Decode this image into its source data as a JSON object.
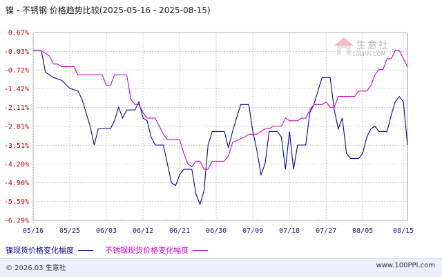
{
  "title": "镍 - 不锈钢 价格趋势比较(2025-05-16 - 2025-08-15)",
  "watermark": {
    "brand": "生意社",
    "site": "100PPI.COM"
  },
  "footer": {
    "left": "© 2026.03 生意社",
    "right": "www.100PPI.com"
  },
  "colors": {
    "series1": "#000099",
    "series2": "#cc00cc",
    "grid": "#c8c8c8",
    "ylabel": "#cc0000",
    "xlabel": "#1a1a66"
  },
  "chart_data": {
    "type": "line",
    "title": "镍 - 不锈钢 价格趋势比较(2025-05-16 - 2025-08-15)",
    "ylim": [
      -6.29,
      0.67
    ],
    "y_ticks": [
      "0.67%",
      "-0.03%",
      "-0.72%",
      "-1.42%",
      "-2.11%",
      "-2.81%",
      "-3.51%",
      "-4.20%",
      "-4.90%",
      "-5.59%",
      "-6.29%"
    ],
    "y_tick_values": [
      0.67,
      -0.03,
      -0.72,
      -1.42,
      -2.11,
      -2.81,
      -3.51,
      -4.2,
      -4.9,
      -5.59,
      -6.29
    ],
    "x_ticks": [
      "05/16",
      "05/25",
      "06/03",
      "06/12",
      "06/21",
      "06/30",
      "07/09",
      "07/18",
      "07/27",
      "08/05",
      "08/15"
    ],
    "x_tick_days": [
      0,
      9,
      18,
      27,
      36,
      45,
      54,
      63,
      72,
      81,
      91
    ],
    "grid": true,
    "legend_position": "bottom",
    "series": [
      {
        "name": "镍现货价格变化幅度",
        "points": [
          [
            0,
            0
          ],
          [
            2,
            0
          ],
          [
            3,
            -0.8
          ],
          [
            4,
            -0.9
          ],
          [
            5,
            -1.0
          ],
          [
            7,
            -1.1
          ],
          [
            9,
            -1.4
          ],
          [
            11,
            -1.5
          ],
          [
            12,
            -1.8
          ],
          [
            13,
            -2.3
          ],
          [
            14,
            -2.8
          ],
          [
            15,
            -3.5
          ],
          [
            16,
            -2.9
          ],
          [
            19,
            -2.9
          ],
          [
            20,
            -2.6
          ],
          [
            21,
            -2.1
          ],
          [
            22,
            -2.5
          ],
          [
            23,
            -2.2
          ],
          [
            25,
            -2.2
          ],
          [
            26,
            -1.9
          ],
          [
            27,
            -2.5
          ],
          [
            28,
            -2.6
          ],
          [
            29,
            -3.2
          ],
          [
            30,
            -3.5
          ],
          [
            32,
            -3.5
          ],
          [
            33,
            -4.2
          ],
          [
            34,
            -4.9
          ],
          [
            35,
            -5.0
          ],
          [
            36,
            -4.6
          ],
          [
            37,
            -4.4
          ],
          [
            39,
            -4.4
          ],
          [
            40,
            -5.3
          ],
          [
            41,
            -5.7
          ],
          [
            42,
            -5.2
          ],
          [
            43,
            -3.5
          ],
          [
            44,
            -3.0
          ],
          [
            47,
            -3.0
          ],
          [
            48,
            -3.6
          ],
          [
            49,
            -3.0
          ],
          [
            50,
            -2.5
          ],
          [
            51,
            -2.0
          ],
          [
            53,
            -2.0
          ],
          [
            54,
            -3.0
          ],
          [
            55,
            -3.7
          ],
          [
            56,
            -4.6
          ],
          [
            57,
            -4.2
          ],
          [
            58,
            -3.0
          ],
          [
            60,
            -3.0
          ],
          [
            61,
            -3.2
          ],
          [
            62,
            -4.4
          ],
          [
            63,
            -3.0
          ],
          [
            64,
            -4.4
          ],
          [
            65,
            -3.5
          ],
          [
            67,
            -3.5
          ],
          [
            68,
            -2.3
          ],
          [
            69,
            -2.0
          ],
          [
            70,
            -1.5
          ],
          [
            71,
            -1.0
          ],
          [
            73,
            -1.0
          ],
          [
            74,
            -2.2
          ],
          [
            75,
            -2.9
          ],
          [
            76,
            -2.5
          ],
          [
            77,
            -3.8
          ],
          [
            78,
            -4.0
          ],
          [
            80,
            -4.0
          ],
          [
            81,
            -3.8
          ],
          [
            82,
            -3.2
          ],
          [
            83,
            -2.9
          ],
          [
            84,
            -2.8
          ],
          [
            85,
            -3.0
          ],
          [
            87,
            -3.0
          ],
          [
            88,
            -2.4
          ],
          [
            89,
            -1.9
          ],
          [
            90,
            -1.7
          ],
          [
            91,
            -1.9
          ],
          [
            92,
            -3.5
          ]
        ]
      },
      {
        "name": "不锈钢现货价格变化幅度",
        "points": [
          [
            0,
            0
          ],
          [
            2,
            0
          ],
          [
            4,
            -0.2
          ],
          [
            5,
            -0.5
          ],
          [
            6,
            -0.5
          ],
          [
            7,
            -0.6
          ],
          [
            10,
            -0.6
          ],
          [
            11,
            -0.9
          ],
          [
            17,
            -0.9
          ],
          [
            18,
            -1.3
          ],
          [
            19,
            -1.3
          ],
          [
            20,
            -0.9
          ],
          [
            23,
            -0.9
          ],
          [
            24,
            -1.8
          ],
          [
            25,
            -2.0
          ],
          [
            26,
            -2.0
          ],
          [
            27,
            -2.3
          ],
          [
            28,
            -2.5
          ],
          [
            30,
            -2.5
          ],
          [
            31,
            -2.8
          ],
          [
            32,
            -3.1
          ],
          [
            33,
            -3.3
          ],
          [
            36,
            -3.3
          ],
          [
            37,
            -3.8
          ],
          [
            38,
            -4.2
          ],
          [
            39,
            -4.3
          ],
          [
            40,
            -4.1
          ],
          [
            41,
            -4.1
          ],
          [
            42,
            -4.4
          ],
          [
            43,
            -4.4
          ],
          [
            44,
            -4.1
          ],
          [
            47,
            -4.1
          ],
          [
            48,
            -3.9
          ],
          [
            49,
            -3.4
          ],
          [
            52,
            -3.2
          ],
          [
            53,
            -3.1
          ],
          [
            55,
            -3.1
          ],
          [
            56,
            -3.0
          ],
          [
            57,
            -2.9
          ],
          [
            58,
            -2.9
          ],
          [
            59,
            -2.8
          ],
          [
            61,
            -2.8
          ],
          [
            62,
            -2.5
          ],
          [
            63,
            -2.6
          ],
          [
            65,
            -2.6
          ],
          [
            66,
            -2.5
          ],
          [
            67,
            -2.5
          ],
          [
            68,
            -2.2
          ],
          [
            69,
            -2.0
          ],
          [
            71,
            -2.0
          ],
          [
            72,
            -1.9
          ],
          [
            73,
            -2.1
          ],
          [
            74,
            -2.1
          ],
          [
            75,
            -1.7
          ],
          [
            79,
            -1.7
          ],
          [
            80,
            -1.5
          ],
          [
            82,
            -1.5
          ],
          [
            83,
            -1.3
          ],
          [
            84,
            -0.9
          ],
          [
            85,
            -0.7
          ],
          [
            86,
            -0.7
          ],
          [
            87,
            -0.3
          ],
          [
            88,
            -0.3
          ],
          [
            89,
            0.0
          ],
          [
            90,
            0.0
          ],
          [
            91,
            -0.3
          ],
          [
            92,
            -0.6
          ]
        ]
      }
    ]
  }
}
